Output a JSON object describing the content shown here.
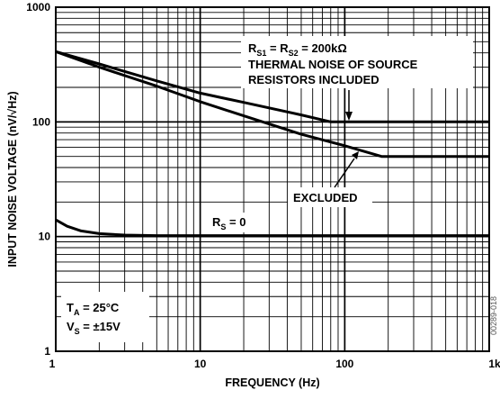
{
  "chart_data": {
    "type": "line",
    "x_scale": "log",
    "y_scale": "log",
    "xlim": [
      1,
      1000
    ],
    "ylim": [
      1,
      1000
    ],
    "grid": true,
    "xlabel": "FREQUENCY (Hz)",
    "ylabel": "INPUT NOISE VOLTAGE (nV/√Hz)",
    "x_ticks": [
      {
        "value": 1,
        "label": "1"
      },
      {
        "value": 10,
        "label": "10"
      },
      {
        "value": 100,
        "label": "100"
      },
      {
        "value": 1000,
        "label": "1k"
      }
    ],
    "y_ticks": [
      {
        "value": 1,
        "label": "1"
      },
      {
        "value": 10,
        "label": "10"
      },
      {
        "value": 100,
        "label": "100"
      },
      {
        "value": 1000,
        "label": "1000"
      }
    ],
    "series": [
      {
        "x": [
          1,
          2,
          5,
          10,
          20,
          50,
          80,
          100,
          200,
          500,
          1000
        ],
        "y": [
          410,
          320,
          228,
          178,
          148,
          115,
          100,
          100,
          100,
          100,
          100
        ]
      },
      {
        "x": [
          1,
          2,
          5,
          10,
          20,
          50,
          100,
          180,
          200,
          500,
          1000
        ],
        "y": [
          410,
          300,
          205,
          150,
          113,
          78,
          62,
          50,
          50,
          50,
          50
        ]
      },
      {
        "x": [
          1,
          1.2,
          1.5,
          2,
          3,
          5,
          10,
          100,
          1000
        ],
        "y": [
          14,
          12.3,
          11.2,
          10.6,
          10.3,
          10.2,
          10.2,
          10.2,
          10.2
        ]
      }
    ],
    "annotations": {
      "rs1_main": "R",
      "rs1_sub": "S1",
      "rs_eq": " = R",
      "rs2_sub": "S2",
      "rs2_val": " = 200kΩ",
      "thermal_line1": "THERMAL NOISE OF SOURCE",
      "thermal_line2": "RESISTORS INCLUDED",
      "excluded": "EXCLUDED",
      "rs0_main": "R",
      "rs0_sub": "S",
      "rs0_val": " = 0",
      "ta_main": "T",
      "ta_sub": "A",
      "ta_val": " = 25°C",
      "vs_main": "V",
      "vs_sub": "S",
      "vs_val": " = ±15V",
      "figure_code": "00289-018"
    }
  }
}
